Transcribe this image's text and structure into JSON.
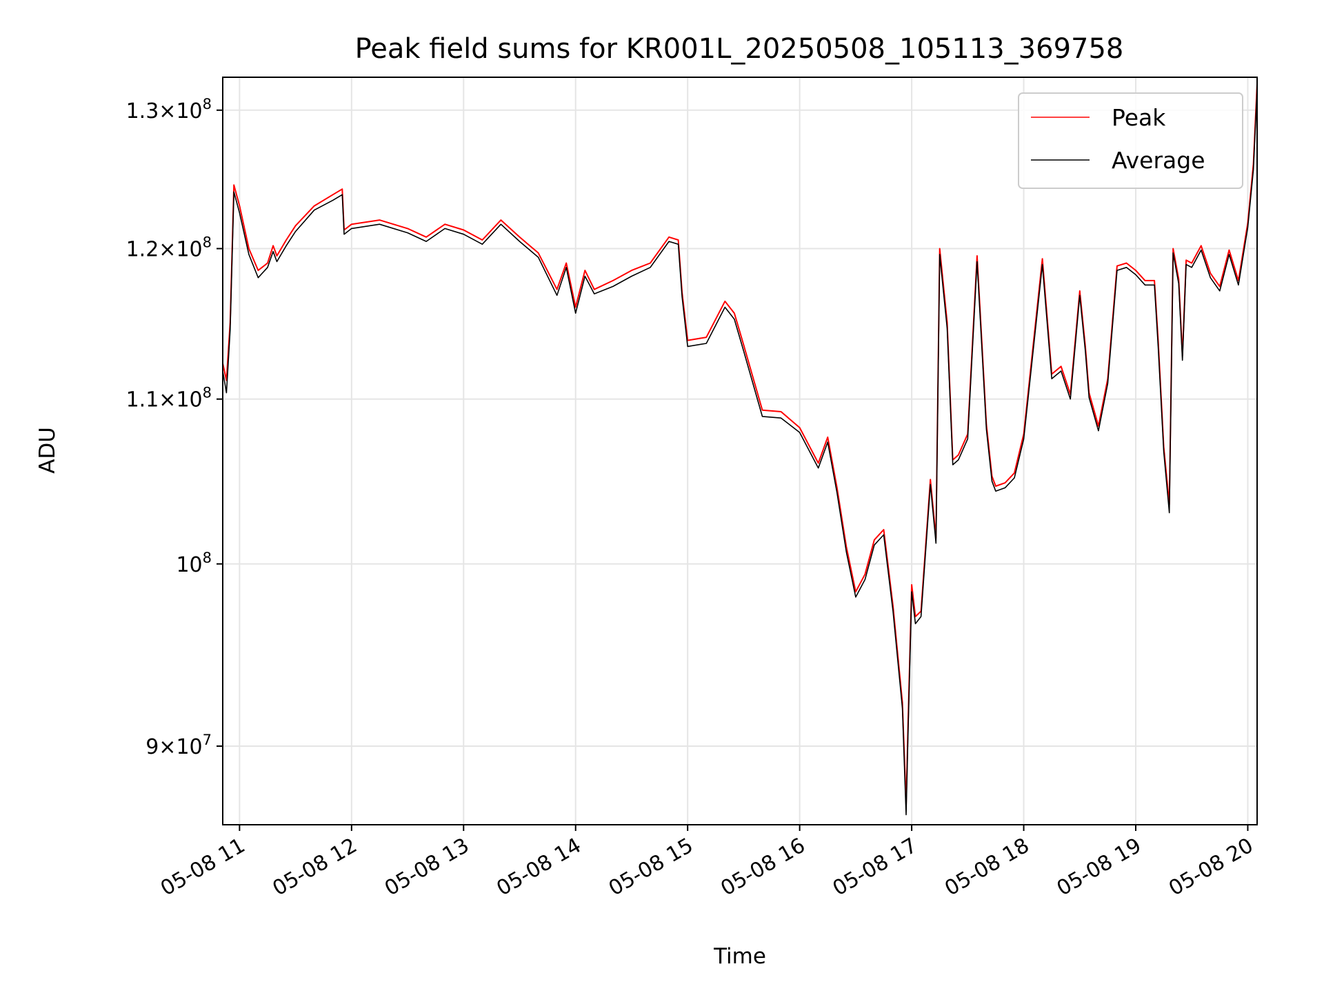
{
  "chart_data": {
    "type": "line",
    "title": "Peak field sums for KR001L_20250508_105113_369758",
    "xlabel": "Time",
    "ylabel": "ADU",
    "y_scale": "log",
    "grid": true,
    "legend_position": "top-right",
    "xlim": [
      "2025-05-08 10:51",
      "2025-05-08 20:05"
    ],
    "ylim": [
      86000000,
      132500000
    ],
    "x_ticks": [
      {
        "value": "2025-05-08 11:00",
        "label": "05-08 11"
      },
      {
        "value": "2025-05-08 12:00",
        "label": "05-08 12"
      },
      {
        "value": "2025-05-08 13:00",
        "label": "05-08 13"
      },
      {
        "value": "2025-05-08 14:00",
        "label": "05-08 14"
      },
      {
        "value": "2025-05-08 15:00",
        "label": "05-08 15"
      },
      {
        "value": "2025-05-08 16:00",
        "label": "05-08 16"
      },
      {
        "value": "2025-05-08 17:00",
        "label": "05-08 17"
      },
      {
        "value": "2025-05-08 18:00",
        "label": "05-08 18"
      },
      {
        "value": "2025-05-08 19:00",
        "label": "05-08 19"
      },
      {
        "value": "2025-05-08 20:00",
        "label": "05-08 20"
      }
    ],
    "y_ticks": [
      {
        "value": 90000000,
        "mant": "9",
        "exp": "7"
      },
      {
        "value": 100000000,
        "mant": "",
        "exp": "8"
      },
      {
        "value": 110000000,
        "mant": "1.1",
        "exp": "8"
      },
      {
        "value": 120000000,
        "mant": "1.2",
        "exp": "8"
      },
      {
        "value": 130000000,
        "mant": "1.3",
        "exp": "8"
      }
    ],
    "series": [
      {
        "name": "Peak",
        "color": "#ff0000",
        "x": [
          "2025-05-08 10:51",
          "2025-05-08 10:53",
          "2025-05-08 10:55",
          "2025-05-08 10:57",
          "2025-05-08 11:00",
          "2025-05-08 11:05",
          "2025-05-08 11:10",
          "2025-05-08 11:15",
          "2025-05-08 11:18",
          "2025-05-08 11:20",
          "2025-05-08 11:25",
          "2025-05-08 11:30",
          "2025-05-08 11:40",
          "2025-05-08 11:50",
          "2025-05-08 11:55",
          "2025-05-08 11:56",
          "2025-05-08 12:00",
          "2025-05-08 12:15",
          "2025-05-08 12:30",
          "2025-05-08 12:40",
          "2025-05-08 12:50",
          "2025-05-08 13:00",
          "2025-05-08 13:10",
          "2025-05-08 13:20",
          "2025-05-08 13:30",
          "2025-05-08 13:40",
          "2025-05-08 13:50",
          "2025-05-08 13:55",
          "2025-05-08 14:00",
          "2025-05-08 14:05",
          "2025-05-08 14:10",
          "2025-05-08 14:20",
          "2025-05-08 14:30",
          "2025-05-08 14:40",
          "2025-05-08 14:50",
          "2025-05-08 14:55",
          "2025-05-08 14:57",
          "2025-05-08 15:00",
          "2025-05-08 15:10",
          "2025-05-08 15:20",
          "2025-05-08 15:25",
          "2025-05-08 15:30",
          "2025-05-08 15:40",
          "2025-05-08 15:50",
          "2025-05-08 16:00",
          "2025-05-08 16:10",
          "2025-05-08 16:15",
          "2025-05-08 16:20",
          "2025-05-08 16:25",
          "2025-05-08 16:30",
          "2025-05-08 16:35",
          "2025-05-08 16:40",
          "2025-05-08 16:45",
          "2025-05-08 16:50",
          "2025-05-08 16:55",
          "2025-05-08 16:57",
          "2025-05-08 16:58",
          "2025-05-08 17:00",
          "2025-05-08 17:02",
          "2025-05-08 17:05",
          "2025-05-08 17:10",
          "2025-05-08 17:13",
          "2025-05-08 17:15",
          "2025-05-08 17:19",
          "2025-05-08 17:22",
          "2025-05-08 17:25",
          "2025-05-08 17:30",
          "2025-05-08 17:35",
          "2025-05-08 17:40",
          "2025-05-08 17:43",
          "2025-05-08 17:45",
          "2025-05-08 17:50",
          "2025-05-08 17:55",
          "2025-05-08 18:00",
          "2025-05-08 18:10",
          "2025-05-08 18:15",
          "2025-05-08 18:20",
          "2025-05-08 18:25",
          "2025-05-08 18:30",
          "2025-05-08 18:33",
          "2025-05-08 18:35",
          "2025-05-08 18:40",
          "2025-05-08 18:45",
          "2025-05-08 18:50",
          "2025-05-08 18:55",
          "2025-05-08 19:00",
          "2025-05-08 19:05",
          "2025-05-08 19:10",
          "2025-05-08 19:12",
          "2025-05-08 19:15",
          "2025-05-08 19:18",
          "2025-05-08 19:20",
          "2025-05-08 19:23",
          "2025-05-08 19:25",
          "2025-05-08 19:27",
          "2025-05-08 19:30",
          "2025-05-08 19:35",
          "2025-05-08 19:40",
          "2025-05-08 19:45",
          "2025-05-08 19:50",
          "2025-05-08 19:55",
          "2025-05-08 20:00",
          "2025-05-08 20:03",
          "2025-05-08 20:05"
        ],
        "values": [
          112300000,
          111200000,
          115000000,
          124500000,
          123000000,
          120000000,
          118500000,
          119000000,
          120200000,
          119500000,
          120600000,
          121600000,
          123000000,
          123800000,
          124200000,
          121300000,
          121700000,
          122000000,
          121400000,
          120800000,
          121700000,
          121300000,
          120600000,
          122000000,
          120800000,
          119700000,
          117200000,
          119000000,
          116000000,
          118500000,
          117200000,
          117800000,
          118500000,
          119000000,
          120800000,
          120600000,
          117000000,
          113800000,
          114000000,
          116400000,
          115600000,
          113500000,
          109300000,
          109200000,
          108200000,
          106000000,
          107600000,
          104500000,
          101000000,
          98400000,
          99400000,
          101400000,
          102000000,
          97600000,
          92300000,
          87000000,
          91000000,
          98800000,
          97000000,
          97300000,
          105000000,
          101500000,
          120000000,
          115000000,
          106200000,
          106500000,
          107800000,
          119500000,
          108400000,
          105200000,
          104600000,
          104800000,
          105400000,
          107800000,
          119300000,
          111600000,
          112100000,
          110300000,
          117100000,
          113400000,
          110400000,
          108300000,
          111300000,
          118800000,
          119000000,
          118500000,
          117800000,
          117800000,
          113800000,
          107000000,
          103500000,
          120000000,
          117900000,
          112800000,
          119200000,
          119000000,
          120200000,
          118300000,
          117400000,
          119900000,
          117800000,
          121800000,
          126000000,
          132000000
        ]
      },
      {
        "name": "Average",
        "color": "#000000",
        "x": [
          "2025-05-08 10:51",
          "2025-05-08 10:53",
          "2025-05-08 10:55",
          "2025-05-08 10:57",
          "2025-05-08 11:00",
          "2025-05-08 11:05",
          "2025-05-08 11:10",
          "2025-05-08 11:15",
          "2025-05-08 11:18",
          "2025-05-08 11:20",
          "2025-05-08 11:25",
          "2025-05-08 11:30",
          "2025-05-08 11:40",
          "2025-05-08 11:50",
          "2025-05-08 11:55",
          "2025-05-08 11:56",
          "2025-05-08 12:00",
          "2025-05-08 12:15",
          "2025-05-08 12:30",
          "2025-05-08 12:40",
          "2025-05-08 12:50",
          "2025-05-08 13:00",
          "2025-05-08 13:10",
          "2025-05-08 13:20",
          "2025-05-08 13:30",
          "2025-05-08 13:40",
          "2025-05-08 13:50",
          "2025-05-08 13:55",
          "2025-05-08 14:00",
          "2025-05-08 14:05",
          "2025-05-08 14:10",
          "2025-05-08 14:20",
          "2025-05-08 14:30",
          "2025-05-08 14:40",
          "2025-05-08 14:50",
          "2025-05-08 14:55",
          "2025-05-08 14:57",
          "2025-05-08 15:00",
          "2025-05-08 15:10",
          "2025-05-08 15:20",
          "2025-05-08 15:25",
          "2025-05-08 15:30",
          "2025-05-08 15:40",
          "2025-05-08 15:50",
          "2025-05-08 16:00",
          "2025-05-08 16:10",
          "2025-05-08 16:15",
          "2025-05-08 16:20",
          "2025-05-08 16:25",
          "2025-05-08 16:30",
          "2025-05-08 16:35",
          "2025-05-08 16:40",
          "2025-05-08 16:45",
          "2025-05-08 16:50",
          "2025-05-08 16:55",
          "2025-05-08 16:57",
          "2025-05-08 16:58",
          "2025-05-08 17:00",
          "2025-05-08 17:02",
          "2025-05-08 17:05",
          "2025-05-08 17:10",
          "2025-05-08 17:13",
          "2025-05-08 17:15",
          "2025-05-08 17:19",
          "2025-05-08 17:22",
          "2025-05-08 17:25",
          "2025-05-08 17:30",
          "2025-05-08 17:35",
          "2025-05-08 17:40",
          "2025-05-08 17:43",
          "2025-05-08 17:45",
          "2025-05-08 17:50",
          "2025-05-08 17:55",
          "2025-05-08 18:00",
          "2025-05-08 18:10",
          "2025-05-08 18:15",
          "2025-05-08 18:20",
          "2025-05-08 18:25",
          "2025-05-08 18:30",
          "2025-05-08 18:33",
          "2025-05-08 18:35",
          "2025-05-08 18:40",
          "2025-05-08 18:45",
          "2025-05-08 18:50",
          "2025-05-08 18:55",
          "2025-05-08 19:00",
          "2025-05-08 19:05",
          "2025-05-08 19:10",
          "2025-05-08 19:12",
          "2025-05-08 19:15",
          "2025-05-08 19:18",
          "2025-05-08 19:20",
          "2025-05-08 19:23",
          "2025-05-08 19:25",
          "2025-05-08 19:27",
          "2025-05-08 19:30",
          "2025-05-08 19:35",
          "2025-05-08 19:40",
          "2025-05-08 19:45",
          "2025-05-08 19:50",
          "2025-05-08 19:55",
          "2025-05-08 20:00",
          "2025-05-08 20:03",
          "2025-05-08 20:05"
        ],
        "values": [
          111800000,
          110400000,
          114500000,
          124000000,
          122500000,
          119600000,
          118000000,
          118700000,
          119800000,
          119100000,
          120200000,
          121200000,
          122700000,
          123400000,
          123800000,
          121000000,
          121400000,
          121700000,
          121100000,
          120500000,
          121400000,
          121000000,
          120300000,
          121700000,
          120500000,
          119400000,
          116800000,
          118700000,
          115600000,
          118100000,
          116900000,
          117400000,
          118100000,
          118700000,
          120500000,
          120300000,
          116700000,
          113400000,
          113600000,
          116000000,
          115200000,
          113100000,
          108900000,
          108800000,
          107900000,
          105700000,
          107300000,
          104200000,
          100700000,
          98100000,
          99100000,
          101100000,
          101700000,
          97300000,
          92000000,
          86500000,
          90500000,
          98400000,
          96600000,
          97000000,
          104700000,
          101200000,
          119600000,
          114600000,
          105900000,
          106200000,
          107500000,
          119100000,
          108100000,
          104900000,
          104300000,
          104500000,
          105100000,
          107500000,
          118900000,
          111300000,
          111800000,
          110000000,
          116800000,
          113100000,
          110100000,
          108000000,
          111000000,
          118500000,
          118700000,
          118200000,
          117500000,
          117500000,
          113400000,
          106700000,
          103000000,
          119700000,
          117600000,
          112500000,
          118900000,
          118700000,
          119900000,
          118000000,
          117100000,
          119600000,
          117500000,
          121500000,
          125600000,
          131500000
        ]
      }
    ]
  }
}
